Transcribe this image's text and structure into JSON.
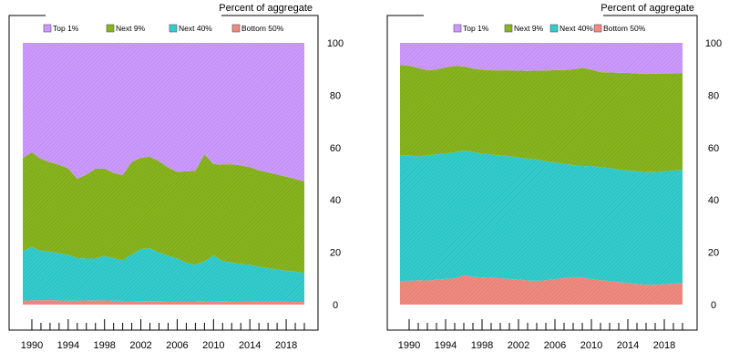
{
  "chart_data": [
    {
      "type": "area",
      "stacked": true,
      "ylabel": "Percent of aggregate",
      "ylim": [
        0,
        100
      ],
      "yticks": [
        0,
        20,
        40,
        60,
        80,
        100
      ],
      "xlim": [
        1989,
        2021
      ],
      "xticks": [
        1990,
        1994,
        1998,
        2002,
        2006,
        2010,
        2014,
        2018
      ],
      "legend_position": "top",
      "grid": false,
      "x": [
        1989,
        1990,
        1991,
        1992,
        1993,
        1994,
        1995,
        1996,
        1997,
        1998,
        1999,
        2000,
        2001,
        2002,
        2003,
        2004,
        2005,
        2006,
        2007,
        2008,
        2009,
        2010,
        2011,
        2012,
        2013,
        2014,
        2015,
        2016,
        2017,
        2018,
        2019,
        2020
      ],
      "series": [
        {
          "name": "Bottom 50%",
          "color": "#f08a80",
          "values": [
            1.5,
            1.6,
            1.7,
            1.7,
            1.6,
            1.5,
            1.5,
            1.6,
            1.6,
            1.6,
            1.5,
            1.4,
            1.4,
            1.3,
            1.3,
            1.3,
            1.2,
            1.2,
            1.2,
            1.2,
            1.4,
            1.4,
            1.3,
            1.2,
            1.2,
            1.2,
            1.1,
            1.1,
            1.1,
            1.1,
            1.0,
            1.0
          ]
        },
        {
          "name": "Next 40%",
          "color": "#33cccc",
          "values": [
            19.0,
            20.4,
            18.8,
            18.5,
            18.0,
            17.5,
            16.3,
            16.0,
            16.0,
            17.0,
            16.2,
            15.6,
            17.7,
            19.9,
            20.2,
            18.6,
            17.5,
            16.4,
            14.8,
            14.0,
            15.1,
            17.4,
            15.3,
            14.9,
            14.2,
            14.1,
            13.3,
            12.9,
            12.3,
            11.9,
            11.6,
            11.0
          ]
        },
        {
          "name": "Next 9%",
          "color": "#88b41e",
          "values": [
            35.5,
            36.2,
            35.1,
            34.2,
            33.8,
            33.0,
            30.3,
            32.1,
            34.3,
            33.4,
            32.6,
            32.5,
            35.4,
            34.9,
            35.0,
            34.9,
            33.7,
            33.1,
            34.9,
            35.9,
            40.9,
            34.9,
            36.9,
            37.5,
            37.8,
            37.2,
            36.9,
            36.5,
            36.3,
            35.9,
            35.4,
            35.0
          ]
        },
        {
          "name": "Top 1%",
          "color": "#cc99ff",
          "values": [
            44.0,
            41.8,
            44.4,
            45.6,
            46.6,
            48.0,
            51.9,
            50.3,
            48.1,
            48.0,
            49.7,
            50.5,
            45.5,
            43.9,
            43.5,
            45.2,
            47.6,
            49.3,
            49.1,
            48.9,
            42.6,
            46.3,
            46.5,
            46.4,
            46.8,
            47.5,
            48.7,
            49.5,
            50.3,
            51.1,
            52.0,
            53.0
          ]
        }
      ]
    },
    {
      "type": "area",
      "stacked": true,
      "ylabel": "Percent of aggregate",
      "ylim": [
        0,
        100
      ],
      "yticks": [
        0,
        20,
        40,
        60,
        80,
        100
      ],
      "xlim": [
        1989,
        2021
      ],
      "xticks": [
        1990,
        1994,
        1998,
        2002,
        2006,
        2010,
        2014,
        2018
      ],
      "legend_position": "top",
      "grid": false,
      "x": [
        1989,
        1990,
        1991,
        1992,
        1993,
        1994,
        1995,
        1996,
        1997,
        1998,
        1999,
        2000,
        2001,
        2002,
        2003,
        2004,
        2005,
        2006,
        2007,
        2008,
        2009,
        2010,
        2011,
        2012,
        2013,
        2014,
        2015,
        2016,
        2017,
        2018,
        2019,
        2020
      ],
      "series": [
        {
          "name": "Bottom 50%",
          "color": "#f08a80",
          "values": [
            9.0,
            9.1,
            9.3,
            9.2,
            9.5,
            9.8,
            10.0,
            11.2,
            10.6,
            10.4,
            10.2,
            10.1,
            9.8,
            9.6,
            9.2,
            9.1,
            9.3,
            9.7,
            10.2,
            10.5,
            10.3,
            9.8,
            9.3,
            9.0,
            8.6,
            8.2,
            7.9,
            7.6,
            7.6,
            7.8,
            8.0,
            8.2
          ]
        },
        {
          "name": "Next 40%",
          "color": "#33cccc",
          "values": [
            48.0,
            47.9,
            47.3,
            47.8,
            47.9,
            47.9,
            48.2,
            47.6,
            47.7,
            47.3,
            47.1,
            46.9,
            46.9,
            46.6,
            46.6,
            46.3,
            45.5,
            44.6,
            43.6,
            42.8,
            42.5,
            43.2,
            43.2,
            43.2,
            43.0,
            43.0,
            43.0,
            43.0,
            43.0,
            43.1,
            43.2,
            43.2
          ]
        },
        {
          "name": "Next 9%",
          "color": "#88b41e",
          "values": [
            34.5,
            34.3,
            33.8,
            32.5,
            32.4,
            32.9,
            33.0,
            32.2,
            31.9,
            32.0,
            32.2,
            32.5,
            32.8,
            33.2,
            33.5,
            34.0,
            34.6,
            35.3,
            35.8,
            36.6,
            37.6,
            36.8,
            36.3,
            36.5,
            37.0,
            37.3,
            37.4,
            37.5,
            37.6,
            37.4,
            37.1,
            37.1
          ]
        },
        {
          "name": "Top 1%",
          "color": "#cc99ff",
          "values": [
            8.5,
            8.7,
            9.6,
            10.5,
            10.2,
            9.4,
            8.8,
            9.0,
            9.8,
            10.3,
            10.5,
            10.5,
            10.5,
            10.6,
            10.7,
            10.6,
            10.6,
            10.4,
            10.4,
            10.1,
            9.6,
            10.2,
            11.2,
            11.3,
            11.4,
            11.5,
            11.7,
            11.9,
            11.8,
            11.7,
            11.7,
            11.5
          ]
        }
      ]
    }
  ]
}
